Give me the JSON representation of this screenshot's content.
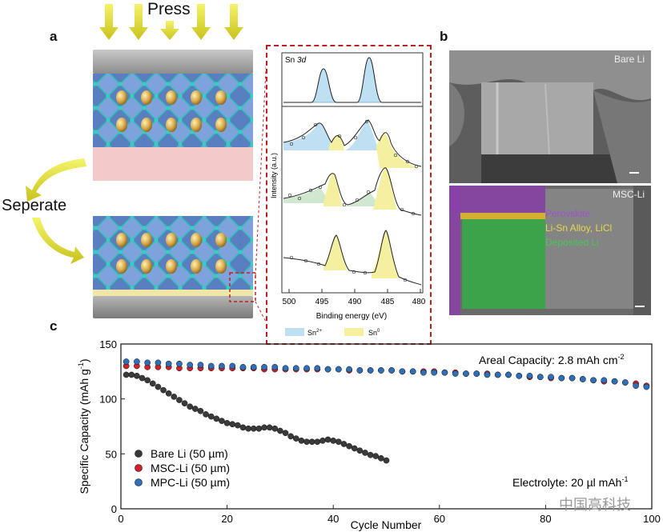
{
  "panel_a": {
    "letter": "a",
    "press_label": "Press",
    "separate_label": "Seperate"
  },
  "panel_b": {
    "letter": "b",
    "top_label": "Bare Li",
    "bottom_label": "MSC-Li",
    "overlay_legend": [
      {
        "text": "Perovskite",
        "color": "#a050d0"
      },
      {
        "text": "Li-Sn Alloy, LiCl",
        "color": "#e8d84a"
      },
      {
        "text": "Deposited Li",
        "color": "#44c85a"
      }
    ]
  },
  "xps": {
    "title_prefix": "Sn ",
    "title_italic": "3d",
    "ylabel": "Intensity (a.u.)",
    "xlabel": "Binding energy (eV)",
    "ticks": [
      "500",
      "495",
      "490",
      "485",
      "480"
    ],
    "legend": [
      {
        "label": "Sn",
        "sup": "2+",
        "color": "#bfe0f2"
      },
      {
        "label": "Sn",
        "sup": "0",
        "color": "#f5f0a0"
      }
    ]
  },
  "panel_c": {
    "letter": "c",
    "annotation_capacity": "Areal Capacity: 2.8 mAh cm",
    "annotation_capacity_sup": "-2",
    "annotation_electrolyte": "Electrolyte: 20 µl mAh",
    "annotation_electrolyte_sup": "-1",
    "watermark": "中国高科技"
  },
  "chart_data": {
    "type": "scatter",
    "xlabel": "Cycle Number",
    "ylabel": "Specific Capacity (mAh g",
    "ylabel_sup": "-1",
    "xlim": [
      0,
      100
    ],
    "ylim": [
      0,
      150
    ],
    "xticks": [
      0,
      20,
      40,
      60,
      80,
      100
    ],
    "yticks": [
      0,
      50,
      100,
      150
    ],
    "legend_position": "bottom-left",
    "series": [
      {
        "name": "Bare Li (50 µm)",
        "color": "#3a3a3a",
        "x": [
          1,
          2,
          3,
          4,
          5,
          6,
          7,
          8,
          9,
          10,
          11,
          12,
          13,
          14,
          15,
          16,
          17,
          18,
          19,
          20,
          21,
          22,
          23,
          24,
          25,
          26,
          27,
          28,
          29,
          30,
          31,
          32,
          33,
          34,
          35,
          36,
          37,
          38,
          39,
          40,
          41,
          42,
          43,
          44,
          45,
          46,
          47,
          48,
          49,
          50
        ],
        "y": [
          122,
          122,
          121,
          119,
          117,
          114,
          111,
          108,
          105,
          102,
          99,
          96,
          93,
          91,
          89,
          86,
          84,
          82,
          80,
          78,
          77,
          76,
          74,
          73,
          73,
          73,
          74,
          74,
          73,
          71,
          69,
          66,
          64,
          62,
          61,
          61,
          61,
          62,
          63,
          62,
          61,
          59,
          57,
          55,
          53,
          51,
          49,
          48,
          46,
          44
        ]
      },
      {
        "name": "MSC-Li (50 µm)",
        "color": "#d0202a",
        "x": [
          1,
          3,
          5,
          7,
          9,
          11,
          13,
          15,
          17,
          19,
          21,
          23,
          25,
          27,
          29,
          31,
          33,
          35,
          37,
          39,
          41,
          43,
          45,
          47,
          49,
          51,
          53,
          55,
          57,
          59,
          61,
          63,
          65,
          67,
          69,
          71,
          73,
          75,
          77,
          79,
          81,
          83,
          85,
          87,
          89,
          91,
          93,
          95,
          97,
          99
        ],
        "y": [
          130,
          130,
          129,
          129,
          129,
          128,
          128,
          128,
          128,
          128,
          128,
          128,
          128,
          127,
          127,
          127,
          127,
          127,
          127,
          127,
          127,
          126,
          126,
          126,
          126,
          126,
          125,
          125,
          125,
          125,
          124,
          124,
          123,
          123,
          123,
          122,
          122,
          121,
          120,
          120,
          119,
          119,
          119,
          118,
          117,
          116,
          116,
          115,
          114,
          112
        ]
      },
      {
        "name": "MPC-Li (50 µm)",
        "color": "#2f6fb8",
        "x": [
          1,
          3,
          5,
          7,
          9,
          11,
          13,
          15,
          17,
          19,
          21,
          23,
          25,
          27,
          29,
          31,
          33,
          35,
          37,
          39,
          41,
          43,
          45,
          47,
          49,
          51,
          53,
          55,
          57,
          59,
          61,
          63,
          65,
          67,
          69,
          71,
          73,
          75,
          77,
          79,
          81,
          83,
          85,
          87,
          89,
          91,
          93,
          95,
          97,
          99
        ],
        "y": [
          134,
          134,
          133,
          133,
          132,
          132,
          131,
          131,
          130,
          130,
          130,
          129,
          129,
          129,
          129,
          128,
          128,
          128,
          128,
          127,
          127,
          127,
          126,
          126,
          126,
          126,
          125,
          125,
          124,
          124,
          124,
          123,
          123,
          123,
          122,
          122,
          122,
          121,
          121,
          120,
          120,
          119,
          119,
          118,
          117,
          117,
          116,
          115,
          112,
          111
        ]
      }
    ]
  }
}
